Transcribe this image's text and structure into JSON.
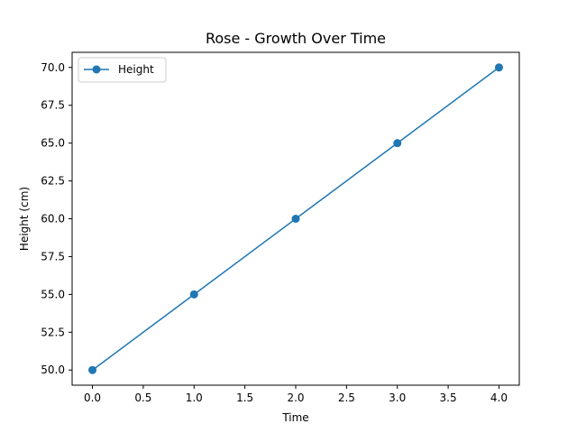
{
  "chart_data": {
    "type": "line",
    "title": "Rose - Growth Over Time",
    "xlabel": "Time",
    "ylabel": "Height (cm)",
    "x": [
      0,
      1,
      2,
      3,
      4
    ],
    "series": [
      {
        "name": "Height",
        "values": [
          50,
          55,
          60,
          65,
          70
        ],
        "color": "#1f77b4",
        "marker": "circle"
      }
    ],
    "xlim": [
      -0.2,
      4.2
    ],
    "ylim": [
      49,
      71
    ],
    "xticks": [
      0.0,
      0.5,
      1.0,
      1.5,
      2.0,
      2.5,
      3.0,
      3.5,
      4.0
    ],
    "xtick_labels": [
      "0.0",
      "0.5",
      "1.0",
      "1.5",
      "2.0",
      "2.5",
      "3.0",
      "3.5",
      "4.0"
    ],
    "yticks": [
      50.0,
      52.5,
      55.0,
      57.5,
      60.0,
      62.5,
      65.0,
      67.5,
      70.0
    ],
    "ytick_labels": [
      "50.0",
      "52.5",
      "55.0",
      "57.5",
      "60.0",
      "62.5",
      "65.0",
      "67.5",
      "70.0"
    ],
    "grid": false,
    "legend_position": "top-left"
  }
}
